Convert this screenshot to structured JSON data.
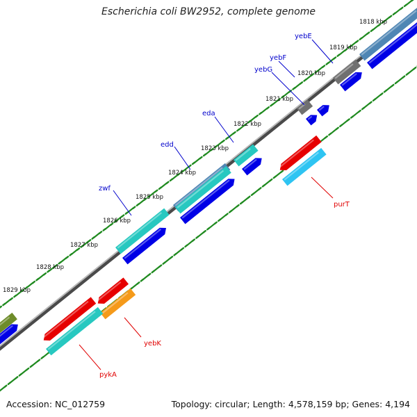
{
  "title": "Escherichia coli BW2952, complete genome",
  "footer": {
    "accession": "Accession: NC_012759",
    "topology": "Topology: circular; Length: 4,578,159 bp; Genes: 4,194"
  },
  "colors": {
    "blue": "#0000e6",
    "teal": "#27c8c0",
    "red": "#e60000",
    "orange": "#f59a1a",
    "gray": "#707070",
    "steel": "#4f86b4",
    "olive": "#6e8c2a",
    "skyblue": "#2ec4f2",
    "tick": "#1f8a1f",
    "backbone": "#808080",
    "label_fwd": "#0000cc",
    "label_rev": "#e00000"
  },
  "ticks": [
    "1818 kbp",
    "1819 kbp",
    "1820 kbp",
    "1821 kbp",
    "1822 kbp",
    "1823 kbp",
    "1824 kbp",
    "1825 kbp",
    "1826 kbp",
    "1827 kbp",
    "1828 kbp",
    "1829 kbp"
  ],
  "gene_labels_forward": [
    "yebE",
    "yebF",
    "yebG",
    "eda",
    "edd",
    "zwf"
  ],
  "gene_labels_reverse": [
    "purT",
    "yebK",
    "pykA"
  ]
}
